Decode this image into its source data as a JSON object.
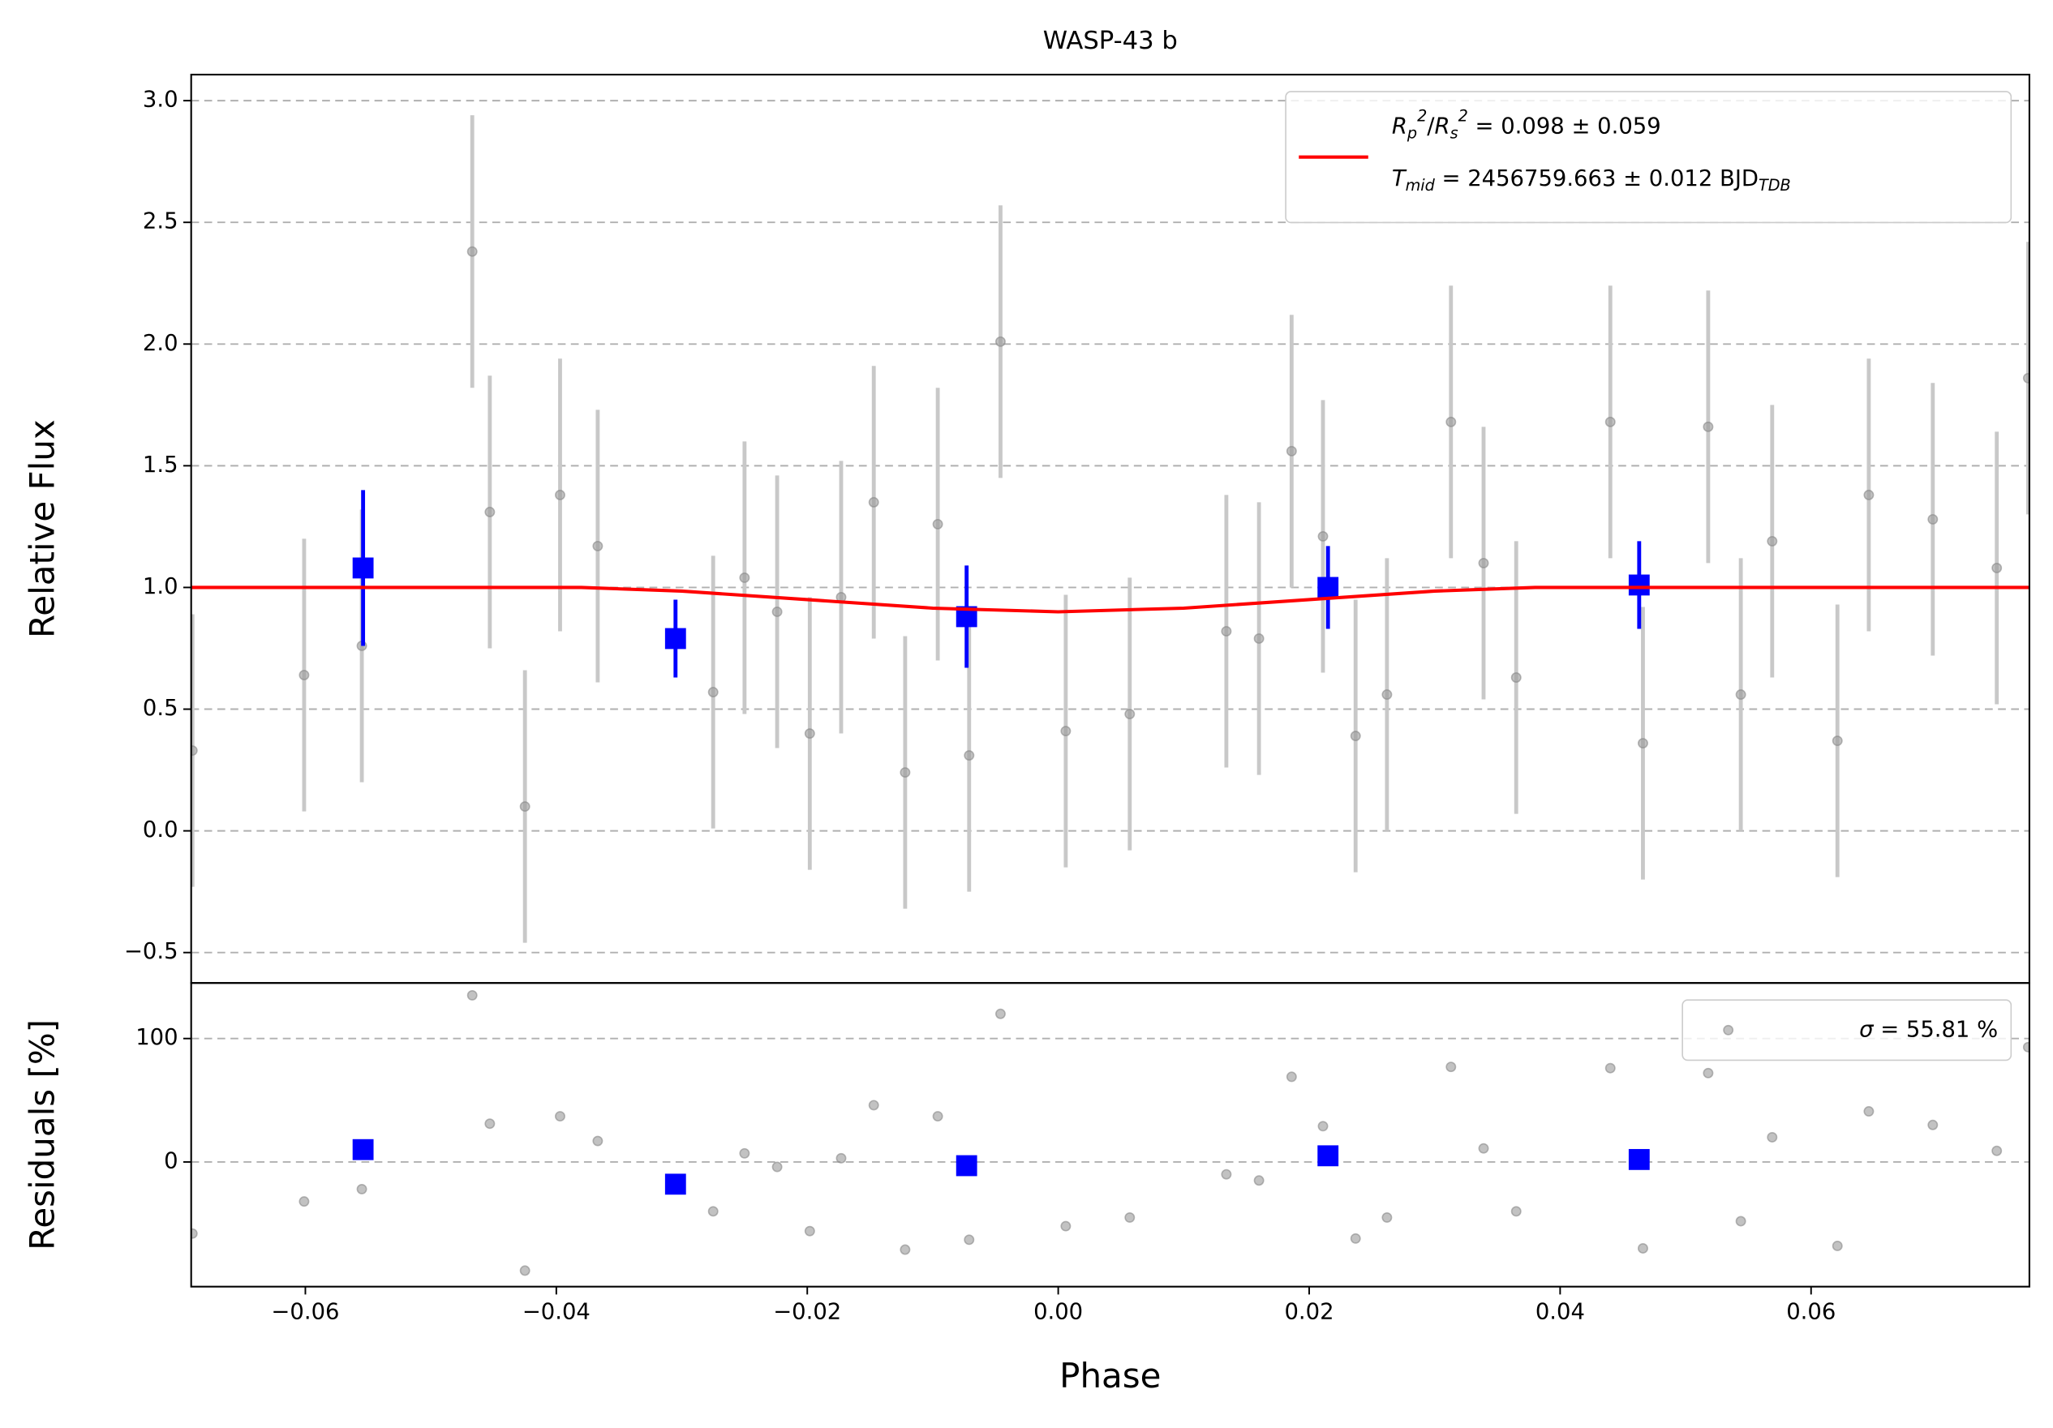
{
  "chart_data": [
    {
      "type": "scatter",
      "title": "WASP-43 b",
      "ylabel": "Relative Flux",
      "xlim": [
        -0.0691,
        0.0774
      ],
      "ylim": [
        -0.625,
        3.107
      ],
      "yticks": [
        {
          "value": -0.5,
          "label": "−0.5"
        },
        {
          "value": 0,
          "label": "0.0"
        },
        0.5,
        {
          "value": 1,
          "label": "1.0"
        },
        1.5,
        {
          "value": 2,
          "label": "2.0"
        },
        2.5,
        {
          "value": 3,
          "label": "3.0"
        }
      ],
      "grid": "y",
      "legend_loc": "upper right",
      "series": [
        {
          "kind": "errorbar",
          "color": "#999999",
          "errcolor": "#c8c8c8",
          "x": [
            -0.069,
            -0.0601,
            -0.0555,
            -0.0467,
            -0.0453,
            -0.0425,
            -0.0397,
            -0.0367,
            -0.0275,
            -0.025,
            -0.0224,
            -0.0198,
            -0.0173,
            -0.0147,
            -0.0122,
            -0.0096,
            -0.0071,
            -0.0046,
            0.0006,
            0.0057,
            0.0134,
            0.016,
            0.0186,
            0.0211,
            0.0237,
            0.0262,
            0.0313,
            0.0339,
            0.0365,
            0.044,
            0.0466,
            0.0518,
            0.0544,
            0.0569,
            0.0621,
            0.0646,
            0.0697,
            0.0748,
            0.0773
          ],
          "values": [
            0.33,
            0.64,
            0.76,
            2.38,
            1.31,
            0.1,
            1.38,
            1.17,
            0.57,
            1.04,
            0.9,
            0.4,
            0.96,
            1.35,
            0.24,
            1.26,
            0.31,
            2.01,
            0.41,
            0.48,
            0.82,
            0.79,
            1.56,
            1.21,
            0.39,
            0.56,
            1.68,
            1.1,
            0.63,
            1.68,
            0.36,
            1.66,
            0.56,
            1.19,
            0.37,
            1.38,
            1.28,
            1.08,
            1.86
          ],
          "errors": [
            0.56,
            0.56,
            0.56,
            0.56,
            0.56,
            0.56,
            0.56,
            0.56,
            0.56,
            0.56,
            0.56,
            0.56,
            0.56,
            0.56,
            0.56,
            0.56,
            0.56,
            0.56,
            0.56,
            0.56,
            0.56,
            0.56,
            0.56,
            0.56,
            0.56,
            0.56,
            0.56,
            0.56,
            0.56,
            0.56,
            0.56,
            0.56,
            0.56,
            0.56,
            0.56,
            0.56,
            0.56,
            0.56,
            0.56
          ]
        },
        {
          "kind": "binned",
          "color": "#0000ff",
          "x": [
            -0.0554,
            -0.0305,
            -0.0073,
            0.0215,
            0.0463
          ],
          "values": [
            1.08,
            0.79,
            0.88,
            1.0,
            1.01
          ],
          "errors": [
            0.32,
            0.16,
            0.21,
            0.17,
            0.18
          ]
        },
        {
          "kind": "line",
          "color": "#ff0000",
          "x": [
            -0.0691,
            -0.038,
            -0.03,
            -0.02,
            -0.01,
            0,
            0.01,
            0.02,
            0.03,
            0.038,
            0.0774
          ],
          "values": [
            1,
            1,
            0.985,
            0.95,
            0.915,
            0.9,
            0.915,
            0.95,
            0.985,
            1,
            1
          ],
          "legend_lines": [
            [
              {
                "text": "R",
                "style": "italic"
              },
              {
                "text": "p",
                "style": "sub"
              },
              {
                "text": "2",
                "style": "sup"
              },
              {
                "text": "/",
                "style": "normal"
              },
              {
                "text": "R",
                "style": "italic"
              },
              {
                "text": "s",
                "style": "sub"
              },
              {
                "text": "2",
                "style": "sup"
              },
              {
                "text": " = 0.098 ± 0.059",
                "style": "normal"
              }
            ],
            [
              {
                "text": "T",
                "style": "italic"
              },
              {
                "text": "mid",
                "style": "sub"
              },
              {
                "text": " = 2456759.663 ± 0.012 BJD",
                "style": "normal"
              },
              {
                "text": "TDB",
                "style": "sub"
              }
            ]
          ]
        }
      ]
    },
    {
      "type": "scatter",
      "ylabel": "Residuals [%]",
      "xlabel": "Phase",
      "xlim": [
        -0.0691,
        0.0774
      ],
      "ylim": [
        -101,
        145
      ],
      "xticks": [
        {
          "value": -0.06,
          "label": "−0.06"
        },
        {
          "value": -0.04,
          "label": "−0.04"
        },
        {
          "value": -0.02,
          "label": "−0.02"
        },
        {
          "value": 0,
          "label": "0.00"
        },
        0.02,
        0.04,
        0.06
      ],
      "yticks": [
        0,
        100
      ],
      "grid": "y",
      "legend_loc": "upper right",
      "series": [
        {
          "kind": "points",
          "color": "#999999",
          "x": [
            -0.069,
            -0.0601,
            -0.0555,
            -0.0467,
            -0.0453,
            -0.0425,
            -0.0397,
            -0.0367,
            -0.0275,
            -0.025,
            -0.0224,
            -0.0198,
            -0.0173,
            -0.0147,
            -0.0122,
            -0.0096,
            -0.0071,
            -0.0046,
            0.0006,
            0.0057,
            0.0134,
            0.016,
            0.0186,
            0.0211,
            0.0237,
            0.0262,
            0.0313,
            0.0339,
            0.0365,
            0.044,
            0.0466,
            0.0518,
            0.0544,
            0.0569,
            0.0621,
            0.0646,
            0.0697,
            0.0748,
            0.0773
          ],
          "values": [
            -58,
            -32,
            -22,
            135,
            31,
            -88,
            37,
            17,
            -40,
            7,
            -4,
            -56,
            3,
            46,
            -71,
            37,
            -63,
            120,
            -52,
            -45,
            -10,
            -15,
            69,
            29,
            -62,
            -45,
            77,
            11,
            -40,
            76,
            -70,
            72,
            -48,
            20,
            -68,
            41,
            30,
            9,
            93
          ],
          "legend_lines": [
            [
              {
                "text": "σ",
                "style": "italic"
              },
              {
                "text": " = 55.81 %",
                "style": "normal"
              }
            ]
          ]
        },
        {
          "kind": "binned",
          "color": "#0000ff",
          "x": [
            -0.0554,
            -0.0305,
            -0.0073,
            0.0215,
            0.0463
          ],
          "values": [
            10,
            -18,
            -3,
            5,
            2
          ]
        }
      ]
    }
  ]
}
